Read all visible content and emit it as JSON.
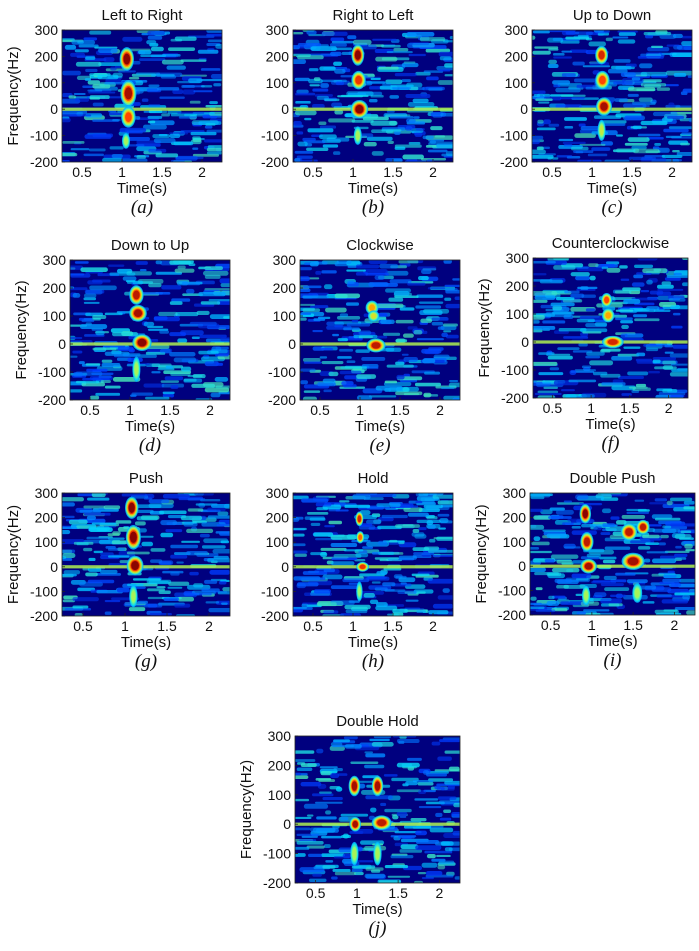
{
  "chart_data": [
    {
      "type": "heatmap",
      "title": "Left to Right",
      "caption": "(a)",
      "xlabel": "Time(s)",
      "ylabel": "Frequency(Hz)",
      "xlim": [
        0.25,
        2.25
      ],
      "ylim": [
        -200,
        300
      ],
      "xticks": [
        "0.5",
        "1",
        "1.5",
        "2"
      ],
      "yticks": [
        "300",
        "200",
        "100",
        "0",
        "-100",
        "-200"
      ],
      "blobs": [
        {
          "t": 1.06,
          "f": 190,
          "wt": 0.09,
          "wf": 45,
          "a": 1.0
        },
        {
          "t": 1.08,
          "f": 60,
          "wt": 0.1,
          "wf": 50,
          "a": 0.95
        },
        {
          "t": 1.08,
          "f": -30,
          "wt": 0.09,
          "wf": 40,
          "a": 0.75
        },
        {
          "t": 1.05,
          "f": -120,
          "wt": 0.05,
          "wf": 30,
          "a": 0.35
        }
      ],
      "colors": [
        "#00007f",
        "#003cff",
        "#00d4ff",
        "#8cff73",
        "#ffd000",
        "#ff3300",
        "#7f0000"
      ]
    },
    {
      "type": "heatmap",
      "title": "Right to Left",
      "caption": "(b)",
      "xlabel": "Time(s)",
      "ylabel": "",
      "xlim": [
        0.25,
        2.25
      ],
      "ylim": [
        -200,
        300
      ],
      "xticks": [
        "0.5",
        "1",
        "1.5",
        "2"
      ],
      "yticks": [
        "300",
        "200",
        "100",
        "0",
        "-100",
        "-200"
      ],
      "blobs": [
        {
          "t": 1.06,
          "f": 205,
          "wt": 0.08,
          "wf": 40,
          "a": 1.0
        },
        {
          "t": 1.07,
          "f": 110,
          "wt": 0.09,
          "wf": 35,
          "a": 0.8
        },
        {
          "t": 1.08,
          "f": 0,
          "wt": 0.11,
          "wf": 35,
          "a": 1.0
        },
        {
          "t": 1.06,
          "f": -100,
          "wt": 0.05,
          "wf": 35,
          "a": 0.35
        }
      ],
      "colors": [
        "#00007f",
        "#003cff",
        "#00d4ff",
        "#8cff73",
        "#ffd000",
        "#ff3300",
        "#7f0000"
      ]
    },
    {
      "type": "heatmap",
      "title": "Up to Down",
      "caption": "(c)",
      "xlabel": "Time(s)",
      "ylabel": "",
      "xlim": [
        0.25,
        2.25
      ],
      "ylim": [
        -200,
        300
      ],
      "xticks": [
        "0.5",
        "1",
        "1.5",
        "2"
      ],
      "yticks": [
        "300",
        "200",
        "100",
        "0",
        "-100",
        "-200"
      ],
      "blobs": [
        {
          "t": 1.12,
          "f": 205,
          "wt": 0.08,
          "wf": 35,
          "a": 0.85
        },
        {
          "t": 1.13,
          "f": 110,
          "wt": 0.09,
          "wf": 35,
          "a": 0.75
        },
        {
          "t": 1.15,
          "f": 10,
          "wt": 0.1,
          "wf": 35,
          "a": 0.95
        },
        {
          "t": 1.12,
          "f": -80,
          "wt": 0.05,
          "wf": 40,
          "a": 0.4
        }
      ],
      "colors": [
        "#00007f",
        "#003cff",
        "#00d4ff",
        "#8cff73",
        "#ffd000",
        "#ff3300",
        "#7f0000"
      ]
    },
    {
      "type": "heatmap",
      "title": "Down to Up",
      "caption": "(d)",
      "xlabel": "Time(s)",
      "ylabel": "Frequency(Hz)",
      "xlim": [
        0.25,
        2.25
      ],
      "ylim": [
        -200,
        300
      ],
      "xticks": [
        "0.5",
        "1",
        "1.5",
        "2"
      ],
      "yticks": [
        "300",
        "200",
        "100",
        "0",
        "-100",
        "-200"
      ],
      "blobs": [
        {
          "t": 1.08,
          "f": 175,
          "wt": 0.09,
          "wf": 35,
          "a": 0.9
        },
        {
          "t": 1.1,
          "f": 110,
          "wt": 0.11,
          "wf": 30,
          "a": 0.95
        },
        {
          "t": 1.15,
          "f": 5,
          "wt": 0.12,
          "wf": 30,
          "a": 1.0
        },
        {
          "t": 1.08,
          "f": -90,
          "wt": 0.05,
          "wf": 45,
          "a": 0.35
        }
      ],
      "colors": [
        "#00007f",
        "#003cff",
        "#00d4ff",
        "#8cff73",
        "#ffd000",
        "#ff3300",
        "#7f0000"
      ]
    },
    {
      "type": "heatmap",
      "title": "Clockwise",
      "caption": "(e)",
      "xlabel": "Time(s)",
      "ylabel": "",
      "xlim": [
        0.25,
        2.25
      ],
      "ylim": [
        -200,
        300
      ],
      "xticks": [
        "0.5",
        "1",
        "1.5",
        "2"
      ],
      "yticks": [
        "300",
        "200",
        "100",
        "0",
        "-100",
        "-200"
      ],
      "blobs": [
        {
          "t": 1.15,
          "f": 130,
          "wt": 0.08,
          "wf": 25,
          "a": 0.6
        },
        {
          "t": 1.17,
          "f": 100,
          "wt": 0.07,
          "wf": 20,
          "a": 0.45
        },
        {
          "t": 1.2,
          "f": -5,
          "wt": 0.12,
          "wf": 25,
          "a": 0.9
        }
      ],
      "colors": [
        "#00007f",
        "#003cff",
        "#00d4ff",
        "#8cff73",
        "#ffd000",
        "#ff3300",
        "#7f0000"
      ]
    },
    {
      "type": "heatmap",
      "title": "Counterclockwise",
      "caption": "(f)",
      "xlabel": "Time(s)",
      "ylabel": "Frequency(Hz)",
      "xlim": [
        0.25,
        2.25
      ],
      "ylim": [
        -200,
        300
      ],
      "xticks": [
        "0.5",
        "1",
        "1.5",
        "2"
      ],
      "yticks": [
        "300",
        "200",
        "100",
        "0",
        "-100",
        "-200"
      ],
      "blobs": [
        {
          "t": 1.2,
          "f": 150,
          "wt": 0.07,
          "wf": 25,
          "a": 0.75
        },
        {
          "t": 1.22,
          "f": 95,
          "wt": 0.08,
          "wf": 25,
          "a": 0.6
        },
        {
          "t": 1.28,
          "f": 0,
          "wt": 0.14,
          "wf": 22,
          "a": 0.85
        }
      ],
      "colors": [
        "#00007f",
        "#003cff",
        "#00d4ff",
        "#8cff73",
        "#ffd000",
        "#ff3300",
        "#7f0000"
      ]
    },
    {
      "type": "heatmap",
      "title": "Push",
      "caption": "(g)",
      "xlabel": "Time(s)",
      "ylabel": "Frequency(Hz)",
      "xlim": [
        0.25,
        2.25
      ],
      "ylim": [
        -200,
        300
      ],
      "xticks": [
        "0.5",
        "1",
        "1.5",
        "2"
      ],
      "yticks": [
        "300",
        "200",
        "100",
        "0",
        "-100",
        "-200"
      ],
      "blobs": [
        {
          "t": 1.08,
          "f": 240,
          "wt": 0.08,
          "wf": 45,
          "a": 1.0
        },
        {
          "t": 1.1,
          "f": 120,
          "wt": 0.09,
          "wf": 50,
          "a": 1.0
        },
        {
          "t": 1.12,
          "f": 5,
          "wt": 0.1,
          "wf": 40,
          "a": 1.0
        },
        {
          "t": 1.1,
          "f": -120,
          "wt": 0.05,
          "wf": 45,
          "a": 0.35
        }
      ],
      "colors": [
        "#00007f",
        "#003cff",
        "#00d4ff",
        "#8cff73",
        "#ffd000",
        "#ff3300",
        "#7f0000"
      ]
    },
    {
      "type": "heatmap",
      "title": "Hold",
      "caption": "(h)",
      "xlabel": "Time(s)",
      "ylabel": "",
      "xlim": [
        0.25,
        2.25
      ],
      "ylim": [
        -200,
        300
      ],
      "xticks": [
        "0.5",
        "1",
        "1.5",
        "2"
      ],
      "yticks": [
        "300",
        "200",
        "100",
        "0",
        "-100",
        "-200"
      ],
      "blobs": [
        {
          "t": 1.08,
          "f": 195,
          "wt": 0.05,
          "wf": 30,
          "a": 0.85
        },
        {
          "t": 1.09,
          "f": 120,
          "wt": 0.05,
          "wf": 25,
          "a": 0.7
        },
        {
          "t": 1.12,
          "f": 0,
          "wt": 0.08,
          "wf": 20,
          "a": 0.8
        },
        {
          "t": 1.08,
          "f": -100,
          "wt": 0.04,
          "wf": 40,
          "a": 0.3
        }
      ],
      "colors": [
        "#00007f",
        "#003cff",
        "#00d4ff",
        "#8cff73",
        "#ffd000",
        "#ff3300",
        "#7f0000"
      ]
    },
    {
      "type": "heatmap",
      "title": "Double Push",
      "caption": "(i)",
      "xlabel": "Time(s)",
      "ylabel": "Frequency(Hz)",
      "xlim": [
        0.25,
        2.25
      ],
      "ylim": [
        -200,
        300
      ],
      "xticks": [
        "0.5",
        "1",
        "1.5",
        "2"
      ],
      "yticks": [
        "300",
        "200",
        "100",
        "0",
        "-100",
        "-200"
      ],
      "blobs": [
        {
          "t": 0.92,
          "f": 215,
          "wt": 0.07,
          "wf": 40,
          "a": 1.0
        },
        {
          "t": 0.94,
          "f": 100,
          "wt": 0.08,
          "wf": 40,
          "a": 0.9
        },
        {
          "t": 0.96,
          "f": 0,
          "wt": 0.1,
          "wf": 30,
          "a": 0.95
        },
        {
          "t": 1.45,
          "f": 140,
          "wt": 0.1,
          "wf": 35,
          "a": 0.9
        },
        {
          "t": 1.62,
          "f": 160,
          "wt": 0.08,
          "wf": 30,
          "a": 0.9
        },
        {
          "t": 1.5,
          "f": 20,
          "wt": 0.14,
          "wf": 35,
          "a": 0.95
        },
        {
          "t": 0.93,
          "f": -120,
          "wt": 0.05,
          "wf": 40,
          "a": 0.35
        },
        {
          "t": 1.55,
          "f": -110,
          "wt": 0.06,
          "wf": 40,
          "a": 0.35
        }
      ],
      "colors": [
        "#00007f",
        "#003cff",
        "#00d4ff",
        "#8cff73",
        "#ffd000",
        "#ff3300",
        "#7f0000"
      ]
    },
    {
      "type": "heatmap",
      "title": "Double Hold",
      "caption": "(j)",
      "xlabel": "Time(s)",
      "ylabel": "Frequency(Hz)",
      "xlim": [
        0.25,
        2.25
      ],
      "ylim": [
        -200,
        300
      ],
      "xticks": [
        "0.5",
        "1",
        "1.5",
        "2"
      ],
      "yticks": [
        "300",
        "200",
        "100",
        "0",
        "-100",
        "-200"
      ],
      "blobs": [
        {
          "t": 0.97,
          "f": 130,
          "wt": 0.07,
          "wf": 35,
          "a": 0.95
        },
        {
          "t": 1.25,
          "f": 130,
          "wt": 0.07,
          "wf": 35,
          "a": 0.95
        },
        {
          "t": 0.98,
          "f": 0,
          "wt": 0.07,
          "wf": 25,
          "a": 0.95
        },
        {
          "t": 1.3,
          "f": 5,
          "wt": 0.12,
          "wf": 25,
          "a": 0.9
        },
        {
          "t": 0.97,
          "f": -100,
          "wt": 0.05,
          "wf": 40,
          "a": 0.35
        },
        {
          "t": 1.25,
          "f": -100,
          "wt": 0.05,
          "wf": 40,
          "a": 0.35
        }
      ],
      "colors": [
        "#00007f",
        "#003cff",
        "#00d4ff",
        "#8cff73",
        "#ffd000",
        "#ff3300",
        "#7f0000"
      ]
    }
  ]
}
